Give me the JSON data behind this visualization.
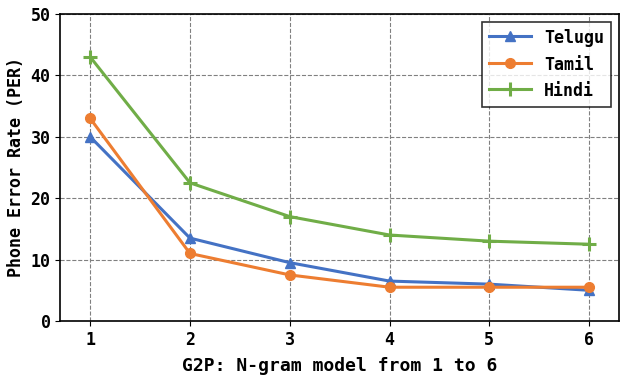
{
  "x": [
    1,
    2,
    3,
    4,
    5,
    6
  ],
  "telugu": [
    30,
    13.5,
    9.5,
    6.5,
    6.0,
    5.0
  ],
  "tamil": [
    33,
    11.0,
    7.5,
    5.5,
    5.5,
    5.5
  ],
  "hindi": [
    43,
    22.5,
    17.0,
    14.0,
    13.0,
    12.5
  ],
  "telugu_color": "#4472C4",
  "tamil_color": "#ED7D31",
  "hindi_color": "#70AD47",
  "xlabel": "G2P: N-gram model from 1 to 6",
  "ylabel": "Phone Error Rate (PER)",
  "ylim": [
    0,
    50
  ],
  "yticks": [
    0,
    10,
    20,
    30,
    40,
    50
  ],
  "xticks": [
    1,
    2,
    3,
    4,
    5,
    6
  ],
  "legend_labels": [
    "Telugu",
    "Tamil",
    "Hindi"
  ],
  "linewidth": 2.2,
  "markersize": 7,
  "xlabel_fontsize": 13,
  "ylabel_fontsize": 12,
  "tick_fontsize": 12,
  "legend_fontsize": 12,
  "background_color": "#ffffff"
}
